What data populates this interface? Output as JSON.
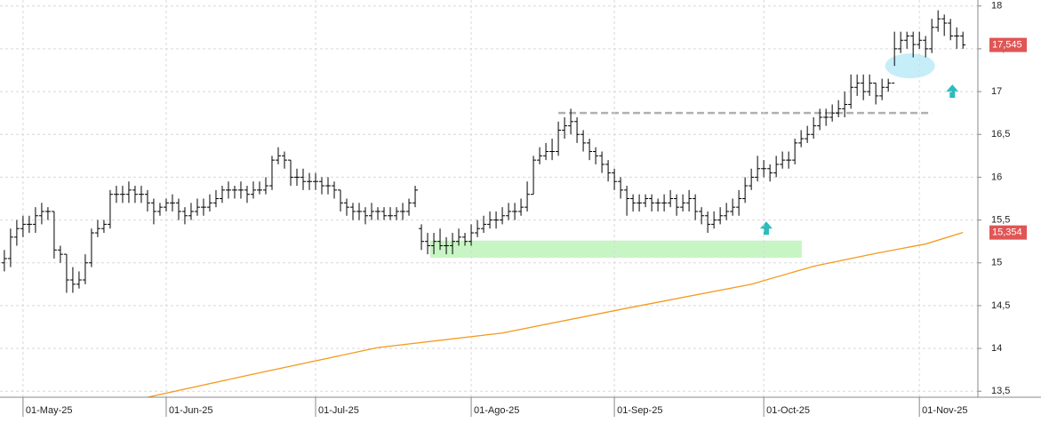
{
  "chart_data": {
    "type": "ohlc",
    "xlim": [
      -0.7,
      156.4
    ],
    "xticks": [
      {
        "value": 3,
        "label": "01-May-25"
      },
      {
        "value": 26,
        "label": "01-Jun-25"
      },
      {
        "value": 50,
        "label": "01-Jul-25"
      },
      {
        "value": 75,
        "label": "01-Ago-25"
      },
      {
        "value": 98,
        "label": "01-Sep-25"
      },
      {
        "value": 122,
        "label": "01-Oct-25"
      },
      {
        "value": 147,
        "label": "01-Nov-25"
      }
    ],
    "ylim": [
      13.43,
      18.07
    ],
    "yticks": [
      {
        "value": 13.5,
        "label": "13,5"
      },
      14,
      {
        "value": 14.5,
        "label": "14,5"
      },
      15,
      {
        "value": 15.5,
        "label": "15,5"
      },
      16,
      {
        "value": 16.5,
        "label": "16,5"
      },
      17,
      {
        "value": 17.5,
        "label": "17,5"
      },
      18
    ],
    "grid": true,
    "ohlc": {
      "color": "#000000",
      "open": [
        15.0,
        15.05,
        15.3,
        15.4,
        15.45,
        15.45,
        15.55,
        15.6,
        15.6,
        15.15,
        15.1,
        14.8,
        14.75,
        14.8,
        15.0,
        15.35,
        15.4,
        15.45,
        15.8,
        15.8,
        15.8,
        15.85,
        15.8,
        15.8,
        15.7,
        15.6,
        15.65,
        15.7,
        15.7,
        15.6,
        15.55,
        15.6,
        15.65,
        15.65,
        15.7,
        15.75,
        15.85,
        15.85,
        15.85,
        15.85,
        15.8,
        15.85,
        15.85,
        15.9,
        16.2,
        16.25,
        16.2,
        16.0,
        16.0,
        15.95,
        15.95,
        15.95,
        15.9,
        15.9,
        15.85,
        15.7,
        15.65,
        15.6,
        15.6,
        15.55,
        15.6,
        15.6,
        15.55,
        15.55,
        15.6,
        15.6,
        15.7,
        15.4,
        15.25,
        15.2,
        15.25,
        15.2,
        15.2,
        15.25,
        15.3,
        15.25,
        15.35,
        15.4,
        15.45,
        15.5,
        15.5,
        15.55,
        15.6,
        15.6,
        15.65,
        15.8,
        16.2,
        16.25,
        16.3,
        16.3,
        16.55,
        16.6,
        16.65,
        16.5,
        16.4,
        16.3,
        16.25,
        16.15,
        16.05,
        15.95,
        15.85,
        15.75,
        15.7,
        15.7,
        15.75,
        15.7,
        15.7,
        15.7,
        15.75,
        15.65,
        15.7,
        15.75,
        15.6,
        15.55,
        15.45,
        15.5,
        15.55,
        15.6,
        15.65,
        15.75,
        15.9,
        16.0,
        16.1,
        16.1,
        16.05,
        16.15,
        16.2,
        16.2,
        16.4,
        16.45,
        16.5,
        16.6,
        16.7,
        16.7,
        16.75,
        16.8,
        16.85,
        17.05,
        17.1,
        17.0,
        17.1,
        16.95,
        17.05,
        17.1,
        17.5,
        17.6,
        17.65,
        17.55,
        17.6,
        17.5,
        17.75,
        17.85,
        17.8,
        17.65,
        17.65
      ],
      "high": [
        15.15,
        15.4,
        15.5,
        15.55,
        15.55,
        15.65,
        15.7,
        15.65,
        15.6,
        15.2,
        15.1,
        14.95,
        14.9,
        15.1,
        15.4,
        15.5,
        15.5,
        15.85,
        15.9,
        15.9,
        15.95,
        15.9,
        15.9,
        15.85,
        15.75,
        15.7,
        15.75,
        15.8,
        15.75,
        15.65,
        15.7,
        15.75,
        15.75,
        15.8,
        15.85,
        15.9,
        15.95,
        15.9,
        15.95,
        15.9,
        15.95,
        15.95,
        16.0,
        16.25,
        16.35,
        16.3,
        16.2,
        16.1,
        16.1,
        16.05,
        16.05,
        16.0,
        16.0,
        15.95,
        15.85,
        15.75,
        15.7,
        15.7,
        15.65,
        15.7,
        15.65,
        15.65,
        15.65,
        15.65,
        15.7,
        15.75,
        15.9,
        15.45,
        15.35,
        15.35,
        15.4,
        15.3,
        15.35,
        15.4,
        15.35,
        15.45,
        15.5,
        15.55,
        15.6,
        15.6,
        15.65,
        15.7,
        15.7,
        15.75,
        15.95,
        16.25,
        16.35,
        16.4,
        16.45,
        16.65,
        16.7,
        16.8,
        16.7,
        16.55,
        16.45,
        16.35,
        16.3,
        16.2,
        16.1,
        16.0,
        15.9,
        15.8,
        15.8,
        15.8,
        15.8,
        15.75,
        15.8,
        15.85,
        15.8,
        15.8,
        15.85,
        15.8,
        15.65,
        15.6,
        15.6,
        15.65,
        15.7,
        15.75,
        15.85,
        16.0,
        16.1,
        16.25,
        16.2,
        16.15,
        16.25,
        16.3,
        16.3,
        16.45,
        16.55,
        16.6,
        16.7,
        16.8,
        16.8,
        16.85,
        16.9,
        17.0,
        17.2,
        17.2,
        17.2,
        17.2,
        17.1,
        17.15,
        17.15,
        17.7,
        17.7,
        17.7,
        17.7,
        17.7,
        17.65,
        17.85,
        17.95,
        17.9,
        17.85,
        17.75,
        17.7
      ],
      "low": [
        14.9,
        14.95,
        15.2,
        15.3,
        15.35,
        15.35,
        15.45,
        15.5,
        15.05,
        15.0,
        14.65,
        14.65,
        14.7,
        14.75,
        14.95,
        15.3,
        15.35,
        15.4,
        15.7,
        15.7,
        15.7,
        15.7,
        15.7,
        15.6,
        15.45,
        15.55,
        15.6,
        15.6,
        15.5,
        15.45,
        15.5,
        15.55,
        15.55,
        15.6,
        15.65,
        15.7,
        15.75,
        15.75,
        15.75,
        15.7,
        15.75,
        15.8,
        15.8,
        15.85,
        16.15,
        16.1,
        15.9,
        15.9,
        15.85,
        15.85,
        15.85,
        15.8,
        15.8,
        15.75,
        15.6,
        15.55,
        15.5,
        15.5,
        15.45,
        15.5,
        15.5,
        15.5,
        15.5,
        15.5,
        15.5,
        15.55,
        15.65,
        15.15,
        15.1,
        15.1,
        15.15,
        15.1,
        15.1,
        15.2,
        15.2,
        15.2,
        15.3,
        15.35,
        15.4,
        15.4,
        15.45,
        15.5,
        15.5,
        15.55,
        15.6,
        15.8,
        16.15,
        16.2,
        16.2,
        16.25,
        16.45,
        16.5,
        16.4,
        16.3,
        16.2,
        16.15,
        16.05,
        15.95,
        15.85,
        15.75,
        15.55,
        15.6,
        15.6,
        15.65,
        15.6,
        15.6,
        15.6,
        15.65,
        15.55,
        15.6,
        15.6,
        15.5,
        15.45,
        15.35,
        15.4,
        15.45,
        15.5,
        15.55,
        15.55,
        15.7,
        15.85,
        15.95,
        16.0,
        15.95,
        16.0,
        16.1,
        16.1,
        16.15,
        16.35,
        16.4,
        16.45,
        16.55,
        16.6,
        16.65,
        16.7,
        16.7,
        16.8,
        16.95,
        16.9,
        16.95,
        16.85,
        16.9,
        17.0,
        17.3,
        17.45,
        17.5,
        17.4,
        17.5,
        17.4,
        17.45,
        17.7,
        17.65,
        17.6,
        17.5,
        17.5
      ],
      "close": [
        15.05,
        15.3,
        15.4,
        15.45,
        15.45,
        15.55,
        15.6,
        15.6,
        15.15,
        15.1,
        14.8,
        14.75,
        14.8,
        15.0,
        15.35,
        15.4,
        15.45,
        15.8,
        15.8,
        15.8,
        15.85,
        15.8,
        15.8,
        15.7,
        15.6,
        15.65,
        15.7,
        15.7,
        15.6,
        15.55,
        15.6,
        15.65,
        15.65,
        15.7,
        15.75,
        15.85,
        15.85,
        15.85,
        15.85,
        15.8,
        15.85,
        15.85,
        15.9,
        16.2,
        16.25,
        16.2,
        16.0,
        16.0,
        15.95,
        15.95,
        15.95,
        15.9,
        15.9,
        15.85,
        15.7,
        15.65,
        15.6,
        15.6,
        15.55,
        15.6,
        15.6,
        15.55,
        15.55,
        15.6,
        15.6,
        15.7,
        15.85,
        15.25,
        15.2,
        15.25,
        15.2,
        15.2,
        15.25,
        15.3,
        15.25,
        15.35,
        15.4,
        15.45,
        15.5,
        15.5,
        15.55,
        15.6,
        15.6,
        15.65,
        15.8,
        16.2,
        16.25,
        16.3,
        16.3,
        16.55,
        16.6,
        16.65,
        16.5,
        16.4,
        16.3,
        16.25,
        16.15,
        16.05,
        15.95,
        15.85,
        15.75,
        15.7,
        15.7,
        15.75,
        15.7,
        15.7,
        15.7,
        15.75,
        15.65,
        15.7,
        15.75,
        15.6,
        15.55,
        15.45,
        15.5,
        15.55,
        15.6,
        15.65,
        15.75,
        15.9,
        16.0,
        16.1,
        16.1,
        16.05,
        16.15,
        16.2,
        16.2,
        16.4,
        16.45,
        16.5,
        16.6,
        16.7,
        16.7,
        16.75,
        16.8,
        16.85,
        17.05,
        17.1,
        17.0,
        17.1,
        16.95,
        17.05,
        17.1,
        17.5,
        17.6,
        17.65,
        17.55,
        17.6,
        17.5,
        17.75,
        17.85,
        17.8,
        17.65,
        17.65,
        17.545
      ]
    },
    "ma": {
      "color": "#f39a1e",
      "x": [
        23,
        40,
        60,
        80,
        100,
        120,
        130,
        140,
        148,
        154
      ],
      "values": [
        13.43,
        13.7,
        14.01,
        14.18,
        14.47,
        14.75,
        14.96,
        15.11,
        15.22,
        15.354
      ]
    },
    "price_labels": [
      {
        "value": 17.545,
        "label": "17,545",
        "color": "#e05555"
      },
      {
        "value": 15.354,
        "label": "15,354",
        "color": "#e05555"
      }
    ],
    "resistance": {
      "value": 16.75,
      "from": 89,
      "to": 149,
      "color": "#b0b0b0"
    },
    "support_zone": {
      "low": 15.06,
      "high": 15.26,
      "from": 68.4,
      "to": 128.1,
      "color": "#c8f5c4"
    },
    "highlight": {
      "x": 145.5,
      "value": 17.3,
      "color": "#c6eef8"
    },
    "arrows": {
      "color": "#2bbcbc",
      "x": [
        122.4,
        152.3
      ],
      "values": [
        15.4,
        17.0
      ]
    }
  }
}
